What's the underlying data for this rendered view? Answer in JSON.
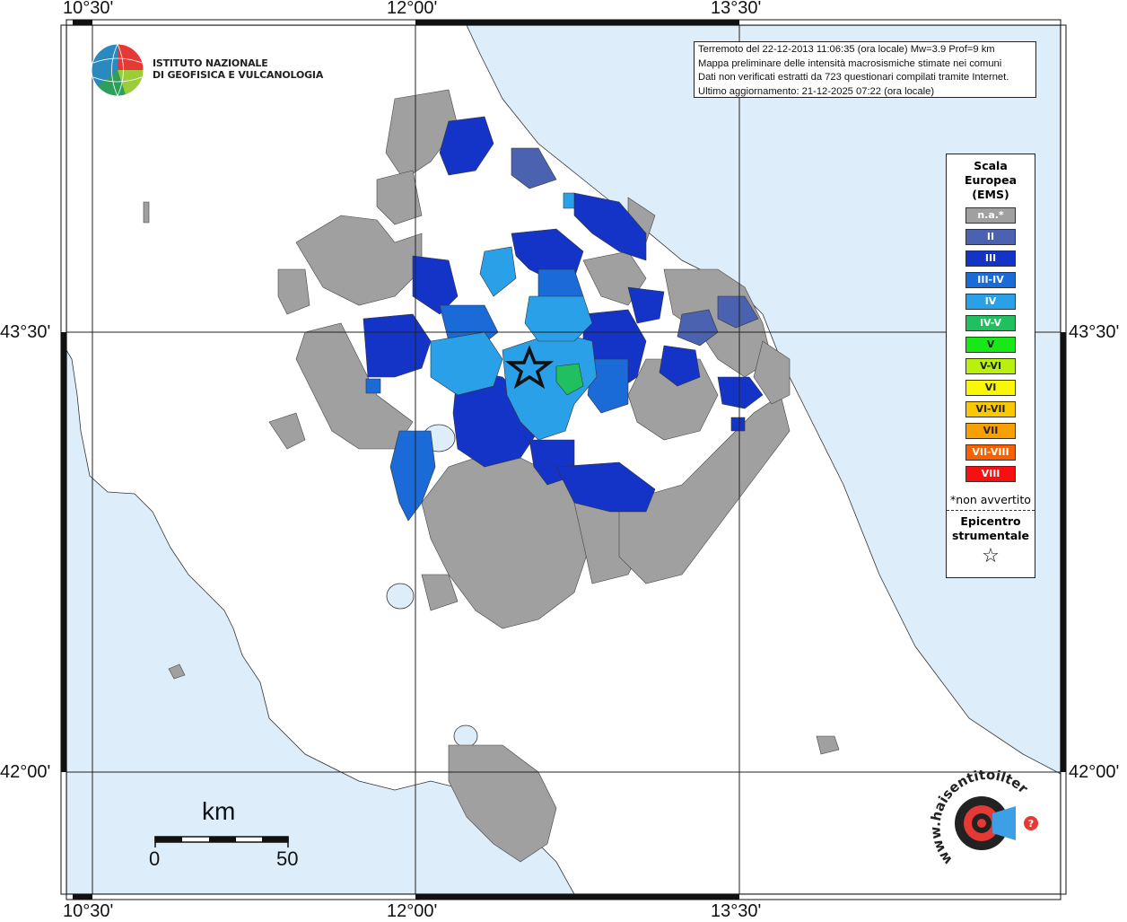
{
  "header": {
    "line1": "Terremoto del 22-12-2013 11:06:35 (ora locale) Mw=3.9 Prof=9 km",
    "line2": "Mappa preliminare delle intensità macrosismiche stimate nei comuni",
    "line3": "Dati non verificati estratti da 723 questionari compilati tramite Internet.",
    "line4": "Ultimo aggiornamento: 21-12-2025 07:22 (ora locale)"
  },
  "logo": {
    "line1": "ISTITUTO NAZIONALE",
    "line2": "DI GEOFISICA E VULCANOLOGIA"
  },
  "axes": {
    "lon_labels": [
      "10°30'",
      "12°00'",
      "13°30'"
    ],
    "lat_labels": [
      "43°30'",
      "42°00'"
    ]
  },
  "legend": {
    "title_line1": "Scala",
    "title_line2": "Europea",
    "title_line3": "(EMS)",
    "items": [
      {
        "label": "n.a.*",
        "color": "#a0a0a0"
      },
      {
        "label": "II",
        "color": "#4a62b0"
      },
      {
        "label": "III",
        "color": "#1434c8"
      },
      {
        "label": "III-IV",
        "color": "#1a6ad8"
      },
      {
        "label": "IV",
        "color": "#2aa0e8"
      },
      {
        "label": "IV-V",
        "color": "#20c060"
      },
      {
        "label": "V",
        "color": "#18e818"
      },
      {
        "label": "V-VI",
        "color": "#b8f010"
      },
      {
        "label": "VI",
        "color": "#f8f800"
      },
      {
        "label": "VI-VII",
        "color": "#f8c800"
      },
      {
        "label": "VII",
        "color": "#f8a000"
      },
      {
        "label": "VII-VIII",
        "color": "#f86000"
      },
      {
        "label": "VIII",
        "color": "#f81010"
      }
    ],
    "note": "*non avvertito",
    "epicenter_line1": "Epicentro",
    "epicenter_line2": "strumentale",
    "epicenter_symbol": "☆"
  },
  "scalebar": {
    "unit": "km",
    "min_label": "0",
    "max_label": "50"
  },
  "watermark": {
    "text": "www.haisentitoilterremoto.it",
    "icon": "seismograph-logo-icon"
  },
  "colors": {
    "sea": "#ddeefa",
    "land": "#ffffff",
    "na": "#a0a0a0",
    "ii": "#4a62b0",
    "iii": "#1434c8",
    "iii_iv": "#1a6ad8",
    "iv": "#2aa0e8",
    "iv_v": "#20c060"
  }
}
